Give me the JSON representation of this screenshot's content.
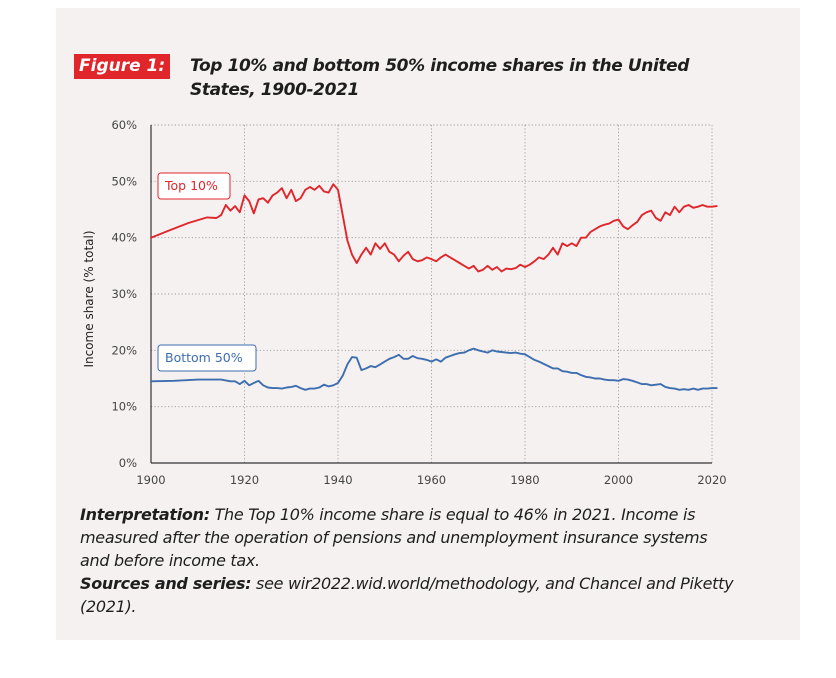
{
  "figure": {
    "badge": "Figure 1:",
    "title": "Top 10% and bottom 50% income shares in the United States, 1900-2021"
  },
  "caption": {
    "interpretation_label": "Interpretation:",
    "interpretation_text": " The Top 10% income share is equal to 46% in 2021. Income is measured after the operation of pensions and unemployment insurance systems and before income tax.",
    "sources_label": "Sources and series:",
    "sources_text": " see wir2022.wid.world/methodology, and Chancel and Piketty (2021)."
  },
  "colors": {
    "top10": "#e0262b",
    "bottom50": "#3d6eae",
    "grid": "#9a9a9a",
    "axis": "#333333",
    "panel": "#f6f1f1"
  },
  "chart_data": {
    "type": "line",
    "title": "Top 10% and bottom 50% income shares in the United States, 1900-2021",
    "xlabel": "",
    "ylabel": "Income share (% total)",
    "xlim": [
      1900,
      2020
    ],
    "ylim": [
      0,
      60
    ],
    "x_ticks": [
      1900,
      1920,
      1940,
      1960,
      1980,
      2000,
      2020
    ],
    "y_ticks": [
      0,
      10,
      20,
      30,
      40,
      50,
      60
    ],
    "y_tick_labels": [
      "0%",
      "10%",
      "20%",
      "30%",
      "40%",
      "50%",
      "60%"
    ],
    "grid": true,
    "series": [
      {
        "name": "Top 10%",
        "color": "#e0262b",
        "points": [
          [
            1900,
            40.0
          ],
          [
            1904,
            41.3
          ],
          [
            1908,
            42.6
          ],
          [
            1912,
            43.6
          ],
          [
            1914,
            43.5
          ],
          [
            1915,
            44.0
          ],
          [
            1916,
            45.8
          ],
          [
            1917,
            44.8
          ],
          [
            1918,
            45.6
          ],
          [
            1919,
            44.5
          ],
          [
            1920,
            47.5
          ],
          [
            1921,
            46.5
          ],
          [
            1922,
            44.3
          ],
          [
            1923,
            46.8
          ],
          [
            1924,
            47.0
          ],
          [
            1925,
            46.2
          ],
          [
            1926,
            47.5
          ],
          [
            1927,
            48.0
          ],
          [
            1928,
            48.8
          ],
          [
            1929,
            47.0
          ],
          [
            1930,
            48.5
          ],
          [
            1931,
            46.5
          ],
          [
            1932,
            47.0
          ],
          [
            1933,
            48.5
          ],
          [
            1934,
            49.0
          ],
          [
            1935,
            48.5
          ],
          [
            1936,
            49.2
          ],
          [
            1937,
            48.2
          ],
          [
            1938,
            48.0
          ],
          [
            1939,
            49.5
          ],
          [
            1940,
            48.5
          ],
          [
            1941,
            44.0
          ],
          [
            1942,
            39.5
          ],
          [
            1943,
            37.0
          ],
          [
            1944,
            35.5
          ],
          [
            1945,
            37.0
          ],
          [
            1946,
            38.2
          ],
          [
            1947,
            37.0
          ],
          [
            1948,
            39.0
          ],
          [
            1949,
            38.0
          ],
          [
            1950,
            39.0
          ],
          [
            1951,
            37.5
          ],
          [
            1952,
            37.0
          ],
          [
            1953,
            35.8
          ],
          [
            1954,
            36.8
          ],
          [
            1955,
            37.5
          ],
          [
            1956,
            36.2
          ],
          [
            1957,
            35.8
          ],
          [
            1958,
            36.0
          ],
          [
            1959,
            36.5
          ],
          [
            1960,
            36.2
          ],
          [
            1961,
            35.8
          ],
          [
            1962,
            36.5
          ],
          [
            1963,
            37.0
          ],
          [
            1964,
            36.5
          ],
          [
            1965,
            36.0
          ],
          [
            1966,
            35.5
          ],
          [
            1967,
            35.0
          ],
          [
            1968,
            34.5
          ],
          [
            1969,
            35.0
          ],
          [
            1970,
            34.0
          ],
          [
            1971,
            34.3
          ],
          [
            1972,
            35.0
          ],
          [
            1973,
            34.3
          ],
          [
            1974,
            34.8
          ],
          [
            1975,
            34.0
          ],
          [
            1976,
            34.5
          ],
          [
            1977,
            34.4
          ],
          [
            1978,
            34.6
          ],
          [
            1979,
            35.2
          ],
          [
            1980,
            34.8
          ],
          [
            1981,
            35.2
          ],
          [
            1982,
            35.8
          ],
          [
            1983,
            36.5
          ],
          [
            1984,
            36.2
          ],
          [
            1985,
            37.0
          ],
          [
            1986,
            38.2
          ],
          [
            1987,
            37.0
          ],
          [
            1988,
            39.0
          ],
          [
            1989,
            38.5
          ],
          [
            1990,
            39.0
          ],
          [
            1991,
            38.5
          ],
          [
            1992,
            40.0
          ],
          [
            1993,
            40.0
          ],
          [
            1994,
            41.0
          ],
          [
            1995,
            41.5
          ],
          [
            1996,
            42.0
          ],
          [
            1997,
            42.3
          ],
          [
            1998,
            42.5
          ],
          [
            1999,
            43.0
          ],
          [
            2000,
            43.2
          ],
          [
            2001,
            42.0
          ],
          [
            2002,
            41.5
          ],
          [
            2003,
            42.2
          ],
          [
            2004,
            42.8
          ],
          [
            2005,
            44.0
          ],
          [
            2006,
            44.5
          ],
          [
            2007,
            44.8
          ],
          [
            2008,
            43.5
          ],
          [
            2009,
            43.0
          ],
          [
            2010,
            44.5
          ],
          [
            2011,
            44.0
          ],
          [
            2012,
            45.5
          ],
          [
            2013,
            44.5
          ],
          [
            2014,
            45.5
          ],
          [
            2015,
            45.8
          ],
          [
            2016,
            45.3
          ],
          [
            2017,
            45.5
          ],
          [
            2018,
            45.8
          ],
          [
            2019,
            45.5
          ],
          [
            2020,
            45.5
          ],
          [
            2021,
            45.6
          ]
        ]
      },
      {
        "name": "Bottom 50%",
        "color": "#3d6eae",
        "points": [
          [
            1900,
            14.5
          ],
          [
            1905,
            14.6
          ],
          [
            1910,
            14.8
          ],
          [
            1915,
            14.8
          ],
          [
            1917,
            14.5
          ],
          [
            1918,
            14.5
          ],
          [
            1919,
            14.0
          ],
          [
            1920,
            14.6
          ],
          [
            1921,
            13.8
          ],
          [
            1922,
            14.2
          ],
          [
            1923,
            14.6
          ],
          [
            1924,
            13.8
          ],
          [
            1925,
            13.4
          ],
          [
            1926,
            13.3
          ],
          [
            1927,
            13.3
          ],
          [
            1928,
            13.2
          ],
          [
            1929,
            13.4
          ],
          [
            1930,
            13.5
          ],
          [
            1931,
            13.7
          ],
          [
            1932,
            13.3
          ],
          [
            1933,
            13.0
          ],
          [
            1934,
            13.2
          ],
          [
            1935,
            13.2
          ],
          [
            1936,
            13.4
          ],
          [
            1937,
            13.9
          ],
          [
            1938,
            13.6
          ],
          [
            1939,
            13.8
          ],
          [
            1940,
            14.2
          ],
          [
            1941,
            15.5
          ],
          [
            1942,
            17.5
          ],
          [
            1943,
            18.8
          ],
          [
            1944,
            18.7
          ],
          [
            1945,
            16.5
          ],
          [
            1946,
            16.8
          ],
          [
            1947,
            17.2
          ],
          [
            1948,
            17.0
          ],
          [
            1949,
            17.5
          ],
          [
            1950,
            18.0
          ],
          [
            1951,
            18.5
          ],
          [
            1952,
            18.8
          ],
          [
            1953,
            19.2
          ],
          [
            1954,
            18.5
          ],
          [
            1955,
            18.5
          ],
          [
            1956,
            19.0
          ],
          [
            1957,
            18.6
          ],
          [
            1958,
            18.5
          ],
          [
            1959,
            18.3
          ],
          [
            1960,
            18.0
          ],
          [
            1961,
            18.4
          ],
          [
            1962,
            18.0
          ],
          [
            1963,
            18.7
          ],
          [
            1964,
            19.0
          ],
          [
            1965,
            19.3
          ],
          [
            1966,
            19.5
          ],
          [
            1967,
            19.6
          ],
          [
            1968,
            20.0
          ],
          [
            1969,
            20.3
          ],
          [
            1970,
            20.0
          ],
          [
            1971,
            19.8
          ],
          [
            1972,
            19.6
          ],
          [
            1973,
            20.0
          ],
          [
            1974,
            19.8
          ],
          [
            1975,
            19.7
          ],
          [
            1976,
            19.6
          ],
          [
            1977,
            19.5
          ],
          [
            1978,
            19.6
          ],
          [
            1979,
            19.4
          ],
          [
            1980,
            19.3
          ],
          [
            1981,
            18.8
          ],
          [
            1982,
            18.3
          ],
          [
            1983,
            18.0
          ],
          [
            1984,
            17.6
          ],
          [
            1985,
            17.2
          ],
          [
            1986,
            16.8
          ],
          [
            1987,
            16.8
          ],
          [
            1988,
            16.3
          ],
          [
            1989,
            16.2
          ],
          [
            1990,
            16.0
          ],
          [
            1991,
            16.0
          ],
          [
            1992,
            15.6
          ],
          [
            1993,
            15.3
          ],
          [
            1994,
            15.2
          ],
          [
            1995,
            15.0
          ],
          [
            1996,
            15.0
          ],
          [
            1997,
            14.8
          ],
          [
            1998,
            14.7
          ],
          [
            1999,
            14.7
          ],
          [
            2000,
            14.6
          ],
          [
            2001,
            14.9
          ],
          [
            2002,
            14.8
          ],
          [
            2003,
            14.6
          ],
          [
            2004,
            14.3
          ],
          [
            2005,
            14.0
          ],
          [
            2006,
            14.0
          ],
          [
            2007,
            13.8
          ],
          [
            2008,
            13.9
          ],
          [
            2009,
            14.0
          ],
          [
            2010,
            13.5
          ],
          [
            2011,
            13.3
          ],
          [
            2012,
            13.2
          ],
          [
            2013,
            13.0
          ],
          [
            2014,
            13.1
          ],
          [
            2015,
            13.0
          ],
          [
            2016,
            13.2
          ],
          [
            2017,
            13.0
          ],
          [
            2018,
            13.2
          ],
          [
            2019,
            13.2
          ],
          [
            2020,
            13.3
          ],
          [
            2021,
            13.3
          ]
        ]
      }
    ],
    "series_labels": [
      "Top 10%",
      "Bottom 50%"
    ]
  }
}
